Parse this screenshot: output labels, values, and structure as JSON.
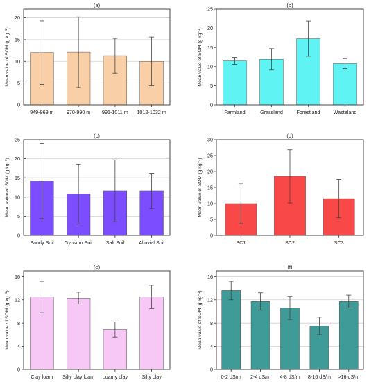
{
  "chart_data": [
    {
      "type": "bar",
      "title": "(a)",
      "categories": [
        "949-969 m",
        "970-990 m",
        "991-1011 m",
        "1012-1032 m"
      ],
      "values": [
        12.0,
        12.1,
        11.3,
        10.0
      ],
      "errors": [
        7.3,
        8.1,
        4.0,
        5.6
      ],
      "ylabel": "Mean value of SOM (g kg⁻¹)",
      "ylim": [
        0,
        22
      ],
      "yticks": [
        0,
        5,
        10,
        15,
        20
      ],
      "bar_color": "#f8cfa6",
      "grid": true
    },
    {
      "type": "bar",
      "title": "(b)",
      "categories": [
        "Farmland",
        "Grassland",
        "Forestland",
        "Wasteland"
      ],
      "values": [
        11.5,
        11.9,
        17.3,
        10.8
      ],
      "errors": [
        0.9,
        2.8,
        4.6,
        1.3
      ],
      "ylabel": "Mean value of SOM (g kg⁻¹)",
      "ylim": [
        0,
        25
      ],
      "yticks": [
        0,
        5,
        10,
        15,
        20,
        25
      ],
      "bar_color": "#5ff3f3",
      "grid": false
    },
    {
      "type": "bar",
      "title": "(c)",
      "categories": [
        "Sandy Soil",
        "Gypsum Soil",
        "Salt Soil",
        "Alluvial Soil"
      ],
      "values": [
        14.2,
        10.8,
        11.6,
        11.6
      ],
      "errors": [
        9.8,
        7.8,
        8.1,
        4.6
      ],
      "ylabel": "Mean value of SOM (g kg⁻¹)",
      "ylim": [
        0,
        25
      ],
      "yticks": [
        0,
        5,
        10,
        15,
        20,
        25
      ],
      "bar_color": "#7c4dff",
      "grid": true
    },
    {
      "type": "bar",
      "title": "(d)",
      "categories": [
        "SC1",
        "SC2",
        "SC3"
      ],
      "values": [
        10.0,
        18.5,
        11.5
      ],
      "errors": [
        6.3,
        8.3,
        6.0
      ],
      "ylabel": "Mean value of SOM (g kg⁻¹)",
      "ylim": [
        0,
        30
      ],
      "yticks": [
        0,
        5,
        10,
        15,
        20,
        25,
        30
      ],
      "bar_color": "#f94848",
      "grid": false
    },
    {
      "type": "bar",
      "title": "(e)",
      "categories": [
        "Clay loam",
        "Silty clay loam",
        "Loamy clay",
        "Silty clay"
      ],
      "values": [
        12.5,
        12.3,
        6.9,
        12.5
      ],
      "errors": [
        2.7,
        1.0,
        1.3,
        2.0
      ],
      "ylabel": "Mean value of SOM (g kg⁻¹)",
      "ylim": [
        0,
        17
      ],
      "yticks": [
        0,
        4,
        8,
        12,
        16
      ],
      "bar_color": "#f7c8f5",
      "grid": false
    },
    {
      "type": "bar",
      "title": "(f)",
      "categories": [
        "0-2 dS/m",
        "2-4 dS/m",
        "4-8 dS/m",
        "8-16 dS/m",
        ">16 dS/m"
      ],
      "values": [
        13.6,
        11.7,
        10.6,
        7.5,
        11.7
      ],
      "errors": [
        1.6,
        1.5,
        2.0,
        1.5,
        1.1
      ],
      "ylabel": "Mean value of SOM (g kg⁻¹)",
      "ylim": [
        0,
        17
      ],
      "yticks": [
        0,
        4,
        8,
        12,
        16
      ],
      "bar_color": "#3f9b98",
      "grid": true
    }
  ]
}
